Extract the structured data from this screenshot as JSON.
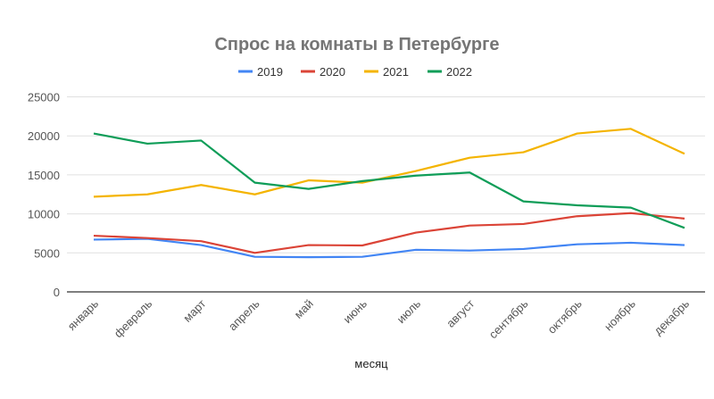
{
  "chart_data": {
    "type": "line",
    "title": "Спрос на комнаты в Петербурге",
    "xlabel": "месяц",
    "ylabel": "",
    "ylim": [
      0,
      25000
    ],
    "yticks": [
      "0",
      "5000",
      "10000",
      "15000",
      "20000",
      "25000"
    ],
    "grid": true,
    "legend_position": "top",
    "categories": [
      "январь",
      "февраль",
      "март",
      "апрель",
      "май",
      "июнь",
      "июль",
      "август",
      "сентябрь",
      "октябрь",
      "ноябрь",
      "декабрь"
    ],
    "series": [
      {
        "name": "2019",
        "color": "#4285f4",
        "values": [
          6700,
          6800,
          6000,
          4500,
          4450,
          4500,
          5400,
          5300,
          5500,
          6100,
          6300,
          6000
        ]
      },
      {
        "name": "2020",
        "color": "#db4437",
        "values": [
          7200,
          6900,
          6500,
          5000,
          6000,
          5950,
          7600,
          8500,
          8700,
          9700,
          10100,
          9400
        ]
      },
      {
        "name": "2021",
        "color": "#f4b400",
        "values": [
          12200,
          12500,
          13700,
          12500,
          14300,
          14000,
          15500,
          17200,
          17900,
          20300,
          20900,
          17700
        ]
      },
      {
        "name": "2022",
        "color": "#0f9d58",
        "values": [
          20300,
          19000,
          19400,
          14000,
          13200,
          14200,
          14900,
          15300,
          11600,
          11100,
          10800,
          8200
        ]
      }
    ]
  }
}
